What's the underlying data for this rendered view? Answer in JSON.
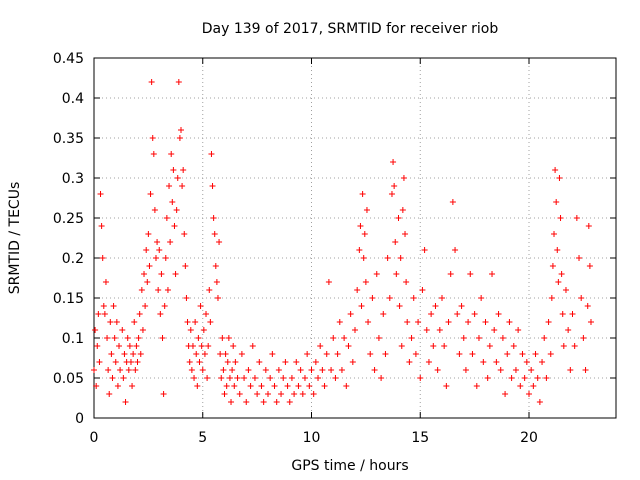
{
  "chart_data": {
    "type": "scatter",
    "title": "Day 139 of 2017, SRMTID for receiver riob",
    "xlabel": "GPS time / hours",
    "ylabel": "SRMTID / TECUs",
    "xlim": [
      0,
      24
    ],
    "ylim": [
      0,
      0.45
    ],
    "xticks": [
      {
        "value": 0,
        "label": "0"
      },
      {
        "value": 5,
        "label": "5"
      },
      {
        "value": 10,
        "label": "10"
      },
      {
        "value": 15,
        "label": "15"
      },
      {
        "value": 20,
        "label": "20"
      }
    ],
    "yticks": [
      {
        "value": 0,
        "label": "0"
      },
      {
        "value": 0.05,
        "label": "0.05"
      },
      {
        "value": 0.1,
        "label": "0.1"
      },
      {
        "value": 0.15,
        "label": "0.15"
      },
      {
        "value": 0.2,
        "label": "0.2"
      },
      {
        "value": 0.25,
        "label": "0.25"
      },
      {
        "value": 0.3,
        "label": "0.3"
      },
      {
        "value": 0.35,
        "label": "0.35"
      },
      {
        "value": 0.4,
        "label": "0.4"
      },
      {
        "value": 0.45,
        "label": "0.45"
      }
    ],
    "grid": true,
    "marker": "+",
    "series": [
      {
        "name": "SRMTID",
        "color": "#ff0000",
        "points": [
          [
            0.0,
            0.06
          ],
          [
            0.05,
            0.11
          ],
          [
            0.1,
            0.04
          ],
          [
            0.15,
            0.09
          ],
          [
            0.2,
            0.13
          ],
          [
            0.25,
            0.07
          ],
          [
            0.3,
            0.28
          ],
          [
            0.35,
            0.24
          ],
          [
            0.4,
            0.2
          ],
          [
            0.45,
            0.14
          ],
          [
            0.5,
            0.13
          ],
          [
            0.55,
            0.17
          ],
          [
            0.6,
            0.1
          ],
          [
            0.65,
            0.06
          ],
          [
            0.7,
            0.03
          ],
          [
            0.75,
            0.12
          ],
          [
            0.8,
            0.08
          ],
          [
            0.85,
            0.05
          ],
          [
            0.9,
            0.14
          ],
          [
            0.95,
            0.1
          ],
          [
            1.0,
            0.07
          ],
          [
            1.05,
            0.12
          ],
          [
            1.1,
            0.04
          ],
          [
            1.15,
            0.09
          ],
          [
            1.2,
            0.06
          ],
          [
            1.3,
            0.11
          ],
          [
            1.35,
            0.05
          ],
          [
            1.4,
            0.08
          ],
          [
            1.45,
            0.02
          ],
          [
            1.5,
            0.07
          ],
          [
            1.55,
            0.1
          ],
          [
            1.6,
            0.06
          ],
          [
            1.65,
            0.09
          ],
          [
            1.7,
            0.07
          ],
          [
            1.75,
            0.04
          ],
          [
            1.8,
            0.08
          ],
          [
            1.85,
            0.12
          ],
          [
            1.9,
            0.06
          ],
          [
            1.95,
            0.09
          ],
          [
            2.0,
            0.07
          ],
          [
            2.05,
            0.1
          ],
          [
            2.1,
            0.13
          ],
          [
            2.15,
            0.08
          ],
          [
            2.2,
            0.16
          ],
          [
            2.25,
            0.11
          ],
          [
            2.3,
            0.18
          ],
          [
            2.35,
            0.14
          ],
          [
            2.4,
            0.21
          ],
          [
            2.45,
            0.17
          ],
          [
            2.5,
            0.23
          ],
          [
            2.55,
            0.19
          ],
          [
            2.6,
            0.28
          ],
          [
            2.65,
            0.42
          ],
          [
            2.7,
            0.35
          ],
          [
            2.75,
            0.33
          ],
          [
            2.8,
            0.26
          ],
          [
            2.85,
            0.2
          ],
          [
            2.9,
            0.22
          ],
          [
            2.95,
            0.16
          ],
          [
            3.0,
            0.21
          ],
          [
            3.05,
            0.13
          ],
          [
            3.1,
            0.18
          ],
          [
            3.15,
            0.1
          ],
          [
            3.2,
            0.03
          ],
          [
            3.25,
            0.14
          ],
          [
            3.3,
            0.2
          ],
          [
            3.35,
            0.25
          ],
          [
            3.4,
            0.16
          ],
          [
            3.45,
            0.29
          ],
          [
            3.5,
            0.22
          ],
          [
            3.55,
            0.33
          ],
          [
            3.6,
            0.27
          ],
          [
            3.65,
            0.31
          ],
          [
            3.7,
            0.24
          ],
          [
            3.75,
            0.18
          ],
          [
            3.8,
            0.26
          ],
          [
            3.85,
            0.3
          ],
          [
            3.9,
            0.42
          ],
          [
            3.95,
            0.35
          ],
          [
            4.0,
            0.36
          ],
          [
            4.05,
            0.29
          ],
          [
            4.1,
            0.31
          ],
          [
            4.15,
            0.23
          ],
          [
            4.2,
            0.19
          ],
          [
            4.25,
            0.15
          ],
          [
            4.3,
            0.12
          ],
          [
            4.35,
            0.09
          ],
          [
            4.4,
            0.07
          ],
          [
            4.45,
            0.11
          ],
          [
            4.5,
            0.06
          ],
          [
            4.55,
            0.09
          ],
          [
            4.6,
            0.05
          ],
          [
            4.65,
            0.12
          ],
          [
            4.7,
            0.08
          ],
          [
            4.75,
            0.04
          ],
          [
            4.8,
            0.1
          ],
          [
            4.85,
            0.07
          ],
          [
            4.9,
            0.14
          ],
          [
            4.95,
            0.09
          ],
          [
            5.0,
            0.06
          ],
          [
            5.05,
            0.11
          ],
          [
            5.1,
            0.08
          ],
          [
            5.15,
            0.13
          ],
          [
            5.2,
            0.05
          ],
          [
            5.25,
            0.09
          ],
          [
            5.3,
            0.16
          ],
          [
            5.35,
            0.12
          ],
          [
            5.4,
            0.33
          ],
          [
            5.45,
            0.29
          ],
          [
            5.5,
            0.25
          ],
          [
            5.55,
            0.23
          ],
          [
            5.6,
            0.19
          ],
          [
            5.65,
            0.17
          ],
          [
            5.7,
            0.15
          ],
          [
            5.75,
            0.22
          ],
          [
            5.8,
            0.08
          ],
          [
            5.85,
            0.05
          ],
          [
            5.9,
            0.1
          ],
          [
            5.95,
            0.06
          ],
          [
            6.0,
            0.03
          ],
          [
            6.05,
            0.08
          ],
          [
            6.1,
            0.04
          ],
          [
            6.15,
            0.07
          ],
          [
            6.2,
            0.1
          ],
          [
            6.25,
            0.05
          ],
          [
            6.3,
            0.02
          ],
          [
            6.35,
            0.06
          ],
          [
            6.4,
            0.09
          ],
          [
            6.45,
            0.04
          ],
          [
            6.5,
            0.07
          ],
          [
            6.6,
            0.05
          ],
          [
            6.7,
            0.03
          ],
          [
            6.8,
            0.08
          ],
          [
            6.9,
            0.05
          ],
          [
            7.0,
            0.02
          ],
          [
            7.1,
            0.06
          ],
          [
            7.2,
            0.04
          ],
          [
            7.3,
            0.09
          ],
          [
            7.4,
            0.05
          ],
          [
            7.5,
            0.03
          ],
          [
            7.6,
            0.07
          ],
          [
            7.7,
            0.04
          ],
          [
            7.8,
            0.02
          ],
          [
            7.9,
            0.06
          ],
          [
            8.0,
            0.03
          ],
          [
            8.1,
            0.05
          ],
          [
            8.2,
            0.08
          ],
          [
            8.3,
            0.04
          ],
          [
            8.4,
            0.02
          ],
          [
            8.5,
            0.06
          ],
          [
            8.6,
            0.03
          ],
          [
            8.7,
            0.05
          ],
          [
            8.8,
            0.07
          ],
          [
            8.9,
            0.04
          ],
          [
            9.0,
            0.02
          ],
          [
            9.1,
            0.05
          ],
          [
            9.2,
            0.03
          ],
          [
            9.3,
            0.07
          ],
          [
            9.4,
            0.04
          ],
          [
            9.5,
            0.06
          ],
          [
            9.6,
            0.03
          ],
          [
            9.7,
            0.05
          ],
          [
            9.8,
            0.08
          ],
          [
            9.9,
            0.04
          ],
          [
            10.0,
            0.06
          ],
          [
            10.1,
            0.03
          ],
          [
            10.2,
            0.07
          ],
          [
            10.3,
            0.05
          ],
          [
            10.4,
            0.09
          ],
          [
            10.5,
            0.06
          ],
          [
            10.6,
            0.04
          ],
          [
            10.7,
            0.08
          ],
          [
            10.8,
            0.17
          ],
          [
            10.9,
            0.06
          ],
          [
            11.0,
            0.1
          ],
          [
            11.1,
            0.05
          ],
          [
            11.2,
            0.08
          ],
          [
            11.3,
            0.12
          ],
          [
            11.4,
            0.06
          ],
          [
            11.5,
            0.1
          ],
          [
            11.6,
            0.04
          ],
          [
            11.7,
            0.09
          ],
          [
            11.8,
            0.13
          ],
          [
            11.9,
            0.07
          ],
          [
            12.0,
            0.11
          ],
          [
            12.1,
            0.16
          ],
          [
            12.2,
            0.21
          ],
          [
            12.25,
            0.24
          ],
          [
            12.3,
            0.14
          ],
          [
            12.35,
            0.28
          ],
          [
            12.4,
            0.2
          ],
          [
            12.45,
            0.23
          ],
          [
            12.5,
            0.17
          ],
          [
            12.55,
            0.26
          ],
          [
            12.6,
            0.12
          ],
          [
            12.7,
            0.08
          ],
          [
            12.8,
            0.15
          ],
          [
            12.9,
            0.06
          ],
          [
            13.0,
            0.18
          ],
          [
            13.1,
            0.1
          ],
          [
            13.2,
            0.05
          ],
          [
            13.3,
            0.13
          ],
          [
            13.4,
            0.08
          ],
          [
            13.5,
            0.2
          ],
          [
            13.6,
            0.15
          ],
          [
            13.7,
            0.28
          ],
          [
            13.75,
            0.32
          ],
          [
            13.8,
            0.29
          ],
          [
            13.85,
            0.22
          ],
          [
            13.9,
            0.18
          ],
          [
            14.0,
            0.25
          ],
          [
            14.05,
            0.14
          ],
          [
            14.1,
            0.2
          ],
          [
            14.15,
            0.09
          ],
          [
            14.2,
            0.26
          ],
          [
            14.25,
            0.3
          ],
          [
            14.3,
            0.23
          ],
          [
            14.35,
            0.17
          ],
          [
            14.4,
            0.12
          ],
          [
            14.5,
            0.07
          ],
          [
            14.6,
            0.1
          ],
          [
            14.7,
            0.15
          ],
          [
            14.8,
            0.08
          ],
          [
            14.9,
            0.12
          ],
          [
            15.0,
            0.05
          ],
          [
            15.1,
            0.16
          ],
          [
            15.2,
            0.21
          ],
          [
            15.3,
            0.11
          ],
          [
            15.4,
            0.07
          ],
          [
            15.5,
            0.13
          ],
          [
            15.6,
            0.09
          ],
          [
            15.7,
            0.14
          ],
          [
            15.8,
            0.06
          ],
          [
            15.9,
            0.11
          ],
          [
            16.0,
            0.15
          ],
          [
            16.1,
            0.09
          ],
          [
            16.2,
            0.04
          ],
          [
            16.3,
            0.12
          ],
          [
            16.4,
            0.18
          ],
          [
            16.5,
            0.27
          ],
          [
            16.6,
            0.21
          ],
          [
            16.7,
            0.13
          ],
          [
            16.8,
            0.08
          ],
          [
            16.9,
            0.14
          ],
          [
            17.0,
            0.1
          ],
          [
            17.1,
            0.06
          ],
          [
            17.2,
            0.12
          ],
          [
            17.3,
            0.18
          ],
          [
            17.4,
            0.08
          ],
          [
            17.5,
            0.13
          ],
          [
            17.6,
            0.04
          ],
          [
            17.7,
            0.1
          ],
          [
            17.8,
            0.15
          ],
          [
            17.9,
            0.07
          ],
          [
            18.0,
            0.12
          ],
          [
            18.1,
            0.05
          ],
          [
            18.2,
            0.09
          ],
          [
            18.3,
            0.18
          ],
          [
            18.4,
            0.11
          ],
          [
            18.5,
            0.07
          ],
          [
            18.6,
            0.13
          ],
          [
            18.7,
            0.06
          ],
          [
            18.8,
            0.1
          ],
          [
            18.9,
            0.03
          ],
          [
            19.0,
            0.08
          ],
          [
            19.1,
            0.12
          ],
          [
            19.2,
            0.05
          ],
          [
            19.3,
            0.09
          ],
          [
            19.4,
            0.06
          ],
          [
            19.5,
            0.11
          ],
          [
            19.6,
            0.04
          ],
          [
            19.7,
            0.08
          ],
          [
            19.8,
            0.05
          ],
          [
            19.9,
            0.07
          ],
          [
            20.0,
            0.03
          ],
          [
            20.1,
            0.06
          ],
          [
            20.2,
            0.04
          ],
          [
            20.3,
            0.08
          ],
          [
            20.4,
            0.05
          ],
          [
            20.5,
            0.02
          ],
          [
            20.6,
            0.07
          ],
          [
            20.7,
            0.1
          ],
          [
            20.8,
            0.05
          ],
          [
            20.9,
            0.12
          ],
          [
            21.0,
            0.08
          ],
          [
            21.05,
            0.15
          ],
          [
            21.1,
            0.19
          ],
          [
            21.15,
            0.23
          ],
          [
            21.2,
            0.31
          ],
          [
            21.25,
            0.27
          ],
          [
            21.3,
            0.21
          ],
          [
            21.35,
            0.17
          ],
          [
            21.4,
            0.3
          ],
          [
            21.45,
            0.25
          ],
          [
            21.5,
            0.18
          ],
          [
            21.55,
            0.13
          ],
          [
            21.6,
            0.09
          ],
          [
            21.7,
            0.16
          ],
          [
            21.8,
            0.11
          ],
          [
            21.9,
            0.06
          ],
          [
            22.0,
            0.13
          ],
          [
            22.1,
            0.09
          ],
          [
            22.2,
            0.25
          ],
          [
            22.3,
            0.2
          ],
          [
            22.4,
            0.15
          ],
          [
            22.5,
            0.1
          ],
          [
            22.6,
            0.06
          ],
          [
            22.7,
            0.14
          ],
          [
            22.75,
            0.24
          ],
          [
            22.8,
            0.19
          ],
          [
            22.85,
            0.12
          ]
        ]
      }
    ]
  }
}
